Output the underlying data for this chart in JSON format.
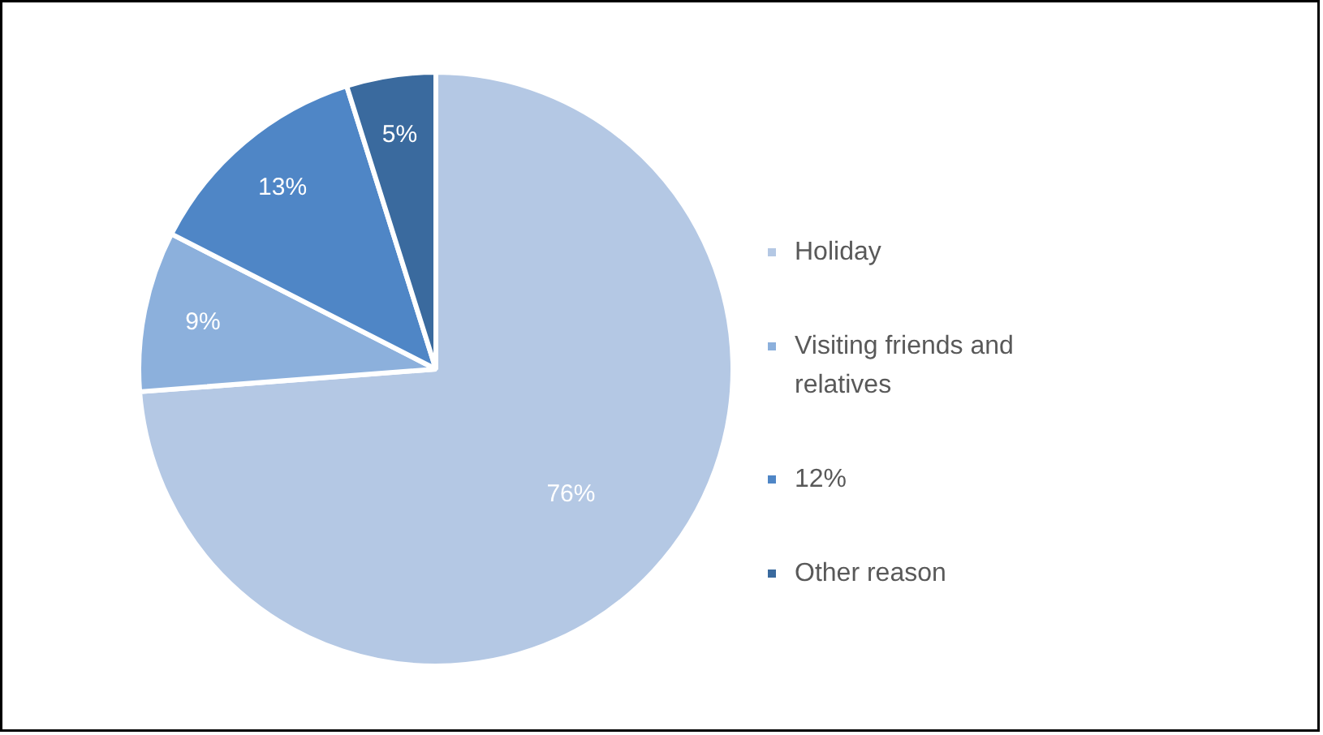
{
  "chart_data": {
    "type": "pie",
    "categories": [
      "Holiday",
      "Visiting friends and relatives",
      "12%",
      "Other reason"
    ],
    "values": [
      76,
      9,
      13,
      5
    ],
    "colors": [
      "#b4c8e4",
      "#8cb0dc",
      "#4f86c6",
      "#3a6a9e"
    ],
    "value_labels": [
      "76%",
      "9%",
      "13%",
      "5%"
    ],
    "legend": "right"
  }
}
